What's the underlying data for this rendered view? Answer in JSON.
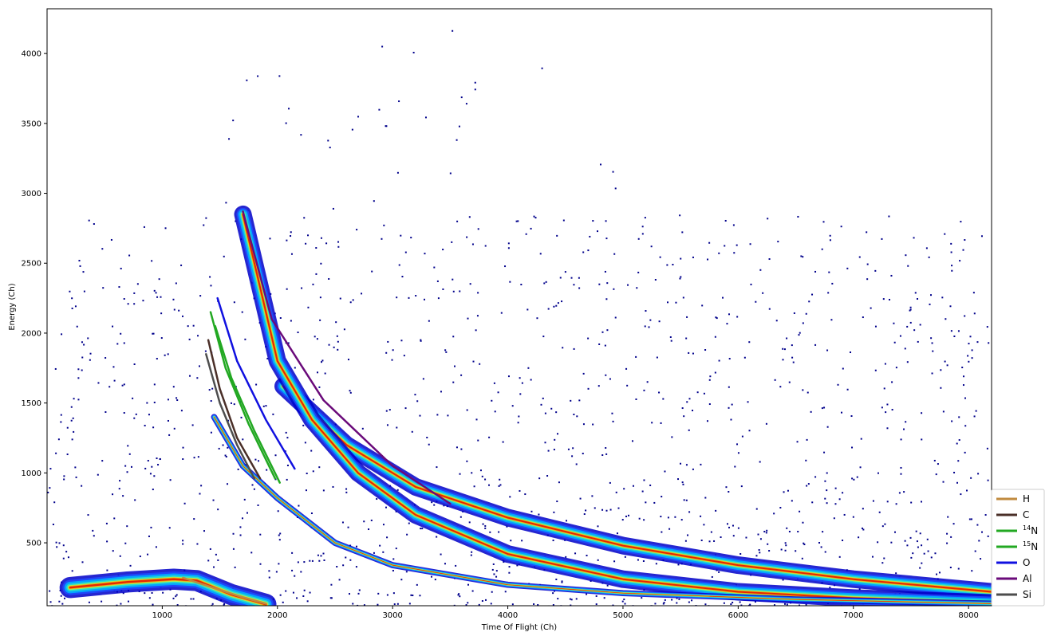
{
  "chart_data": {
    "type": "scatter",
    "title": "",
    "xlabel": "Time Of Flight (Ch)",
    "ylabel": "Energy (Ch)",
    "xlim": [
      0,
      8200
    ],
    "ylim": [
      50,
      4320
    ],
    "x_ticks": [
      "1000",
      "2000",
      "3000",
      "4000",
      "5000",
      "6000",
      "7000",
      "8000"
    ],
    "y_ticks": [
      "500",
      "1000",
      "1500",
      "2000",
      "2500",
      "3000",
      "3500",
      "4000"
    ],
    "x_tick_values": [
      1000,
      2000,
      3000,
      4000,
      5000,
      6000,
      7000,
      8000
    ],
    "y_tick_values": [
      500,
      1000,
      1500,
      2000,
      2500,
      3000,
      3500,
      4000
    ],
    "colormap": "jet",
    "legend_placement": "lower-right",
    "legend": [
      {
        "label": "H",
        "sup": "",
        "color": "#c08a3e"
      },
      {
        "label": "C",
        "sup": "",
        "color": "#4a2f28"
      },
      {
        "label": "N",
        "sup": "14",
        "color": "#22a822"
      },
      {
        "label": "N",
        "sup": "15",
        "color": "#22a822"
      },
      {
        "label": "O",
        "sup": "",
        "color": "#1010e0"
      },
      {
        "label": "Al",
        "sup": "",
        "color": "#6a0a7a"
      },
      {
        "label": "Si",
        "sup": "",
        "color": "#4d4d4d"
      }
    ],
    "bands": [
      {
        "name": "upper-band",
        "points": [
          [
            2050,
            1620
          ],
          [
            2600,
            1200
          ],
          [
            3200,
            900
          ],
          [
            4000,
            680
          ],
          [
            5000,
            480
          ],
          [
            6000,
            340
          ],
          [
            7000,
            240
          ],
          [
            8200,
            150
          ]
        ]
      },
      {
        "name": "main-band",
        "points": [
          [
            1700,
            2850
          ],
          [
            2000,
            1800
          ],
          [
            2300,
            1380
          ],
          [
            2700,
            1000
          ],
          [
            3200,
            700
          ],
          [
            4000,
            420
          ],
          [
            5000,
            240
          ],
          [
            6000,
            150
          ],
          [
            7000,
            105
          ],
          [
            8200,
            70
          ]
        ]
      },
      {
        "name": "lower-band",
        "points": [
          [
            1450,
            1400
          ],
          [
            1700,
            1050
          ],
          [
            2000,
            820
          ],
          [
            2500,
            500
          ],
          [
            3000,
            340
          ],
          [
            4000,
            200
          ],
          [
            5000,
            140
          ],
          [
            6500,
            95
          ],
          [
            8200,
            65
          ]
        ]
      },
      {
        "name": "low-energy-cluster",
        "points": [
          [
            200,
            180
          ],
          [
            700,
            220
          ],
          [
            1100,
            240
          ],
          [
            1300,
            230
          ],
          [
            1600,
            130
          ],
          [
            1900,
            60
          ]
        ]
      }
    ],
    "cuts": [
      {
        "name": "H",
        "color": "#c08a3e",
        "points": [
          [
            1180,
            250
          ],
          [
            1400,
            190
          ],
          [
            1700,
            110
          ],
          [
            1900,
            65
          ]
        ]
      },
      {
        "name": "C",
        "color": "#4a2f28",
        "points": [
          [
            1400,
            1950
          ],
          [
            1500,
            1600
          ],
          [
            1650,
            1250
          ],
          [
            1850,
            960
          ]
        ]
      },
      {
        "name": "14N",
        "color": "#22a822",
        "points": [
          [
            1420,
            2150
          ],
          [
            1550,
            1750
          ],
          [
            1750,
            1350
          ],
          [
            1980,
            960
          ]
        ]
      },
      {
        "name": "15N",
        "color": "#22a822",
        "points": [
          [
            1460,
            2050
          ],
          [
            1600,
            1680
          ],
          [
            1800,
            1300
          ],
          [
            2020,
            930
          ]
        ]
      },
      {
        "name": "O",
        "color": "#1010e0",
        "points": [
          [
            1480,
            2250
          ],
          [
            1650,
            1800
          ],
          [
            1900,
            1380
          ],
          [
            2150,
            1030
          ]
        ]
      },
      {
        "name": "Al",
        "color": "#6a0a7a",
        "points": [
          [
            1700,
            2870
          ],
          [
            1950,
            2100
          ],
          [
            2400,
            1520
          ],
          [
            3000,
            1050
          ],
          [
            3500,
            780
          ]
        ]
      },
      {
        "name": "Si",
        "color": "#4d4d4d",
        "points": [
          [
            1380,
            1850
          ],
          [
            1500,
            1500
          ],
          [
            1650,
            1200
          ],
          [
            1800,
            960
          ]
        ]
      }
    ]
  }
}
